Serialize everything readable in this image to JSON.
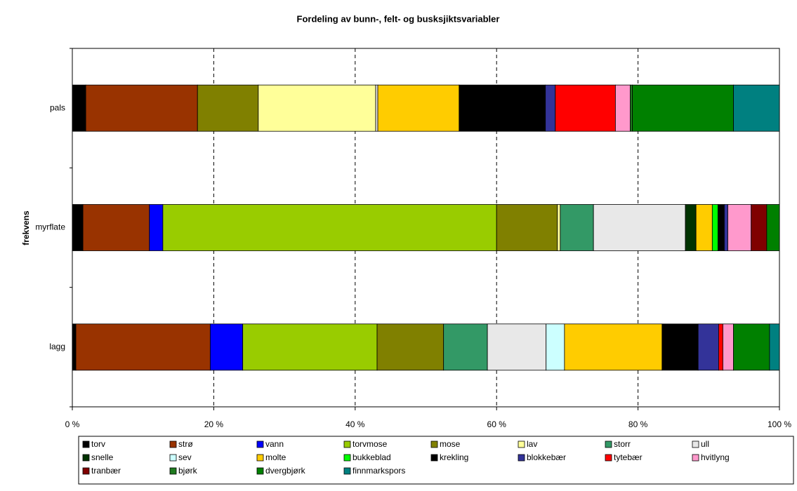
{
  "chart_data": {
    "type": "stacked_barh_percent",
    "title": "Fordeling av bunn-, felt- og busksjiktsvariabler",
    "y_label": "frekvens",
    "categories": [
      "lagg",
      "myrflate",
      "pals"
    ],
    "xlim": [
      0,
      100
    ],
    "xticks": [
      {
        "value": 0,
        "label": "0 %"
      },
      {
        "value": 20,
        "label": "20 %"
      },
      {
        "value": 40,
        "label": "40 %"
      },
      {
        "value": 60,
        "label": "60 %"
      },
      {
        "value": 80,
        "label": "80 %"
      },
      {
        "value": 100,
        "label": "100 %"
      }
    ],
    "grid": true,
    "legend": "bottom",
    "series": [
      {
        "name": "torv",
        "color": "#000000",
        "values": [
          0.5,
          1.5,
          1.9
        ]
      },
      {
        "name": "strø",
        "color": "#993300",
        "values": [
          19.0,
          9.4,
          15.8
        ]
      },
      {
        "name": "vann",
        "color": "#0000ff",
        "values": [
          4.6,
          1.9,
          0
        ]
      },
      {
        "name": "torvmose",
        "color": "#99cc00",
        "values": [
          19.0,
          47.2,
          0
        ]
      },
      {
        "name": "mose",
        "color": "#808000",
        "values": [
          9.4,
          8.6,
          8.6
        ]
      },
      {
        "name": "lav",
        "color": "#ffff99",
        "values": [
          0,
          0.4,
          16.6
        ]
      },
      {
        "name": "storr",
        "color": "#339966",
        "values": [
          6.2,
          4.7,
          0
        ]
      },
      {
        "name": "ull",
        "color": "#e8e8e8",
        "values": [
          8.3,
          13.0,
          0.3
        ]
      },
      {
        "name": "snelle",
        "color": "#003300",
        "values": [
          0,
          1.5,
          0
        ]
      },
      {
        "name": "sev",
        "color": "#ccffff",
        "values": [
          2.6,
          0,
          0
        ]
      },
      {
        "name": "molte",
        "color": "#ffcc00",
        "values": [
          13.8,
          2.3,
          11.5
        ]
      },
      {
        "name": "bukkeblad",
        "color": "#00ff00",
        "values": [
          0,
          0.8,
          0
        ]
      },
      {
        "name": "krekling",
        "color": "#000000",
        "values": [
          5.1,
          0.9,
          12.2
        ]
      },
      {
        "name": "blokkebær",
        "color": "#333399",
        "values": [
          2.9,
          0.5,
          1.4
        ]
      },
      {
        "name": "tytebær",
        "color": "#ff0000",
        "values": [
          0.6,
          0,
          8.5
        ]
      },
      {
        "name": "hvitlyng",
        "color": "#ff99cc",
        "values": [
          1.5,
          3.3,
          2.1
        ]
      },
      {
        "name": "tranbær",
        "color": "#800000",
        "values": [
          0,
          2.2,
          0
        ]
      },
      {
        "name": "bjørk",
        "color": "#1f7a1f",
        "values": [
          0,
          0,
          0.3
        ]
      },
      {
        "name": "dvergbjørk",
        "color": "#008000",
        "values": [
          5.1,
          1.8,
          14.3
        ]
      },
      {
        "name": "finnmarkspors",
        "color": "#008080",
        "values": [
          1.4,
          0,
          6.5
        ]
      }
    ]
  }
}
